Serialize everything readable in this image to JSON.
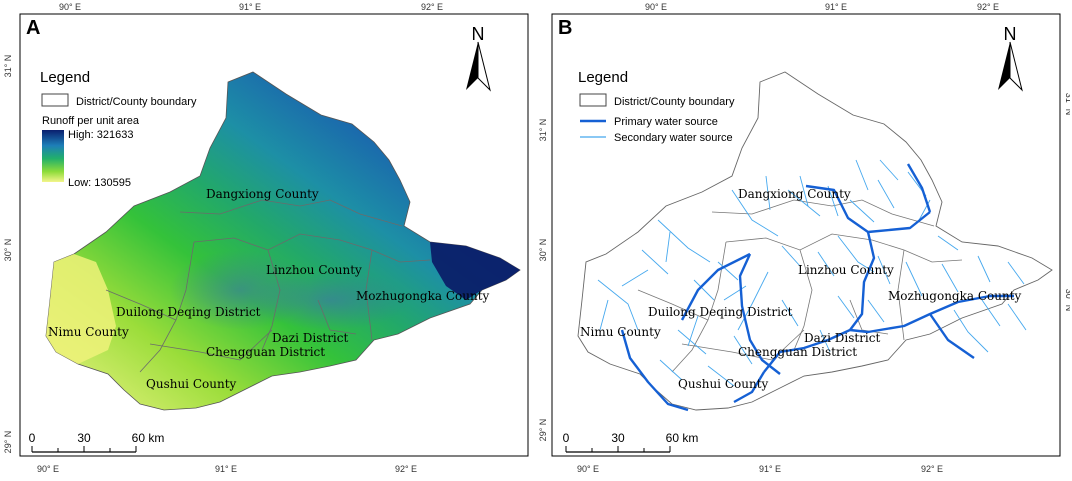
{
  "panels": [
    {
      "letter": "A",
      "north_label": "N",
      "legend_title": "Legend",
      "legend_boundary_label": "District/County boundary",
      "legend_runoff_title": "Runoff per unit area",
      "legend_high_label": "High: 321633",
      "legend_low_label": "Low: 130595",
      "scale_ticks": [
        "0",
        "30",
        "60 km"
      ],
      "lon_ticks": [
        "90° E",
        "91° E",
        "92° E"
      ],
      "lat_ticks": [
        "31° N",
        "30° N",
        "29° N"
      ],
      "region_labels": [
        "Dangxiong County",
        "Linzhou County",
        "Mozhugongka County",
        "Duilong Deqing District",
        "Dazi District",
        "Chengguan District",
        "Nimu County",
        "Qushui County"
      ],
      "colors": {
        "high": "#0a1f6e",
        "low": "#f2f58a"
      }
    },
    {
      "letter": "B",
      "north_label": "N",
      "legend_title": "Legend",
      "legend_boundary_label": "District/County boundary",
      "legend_primary_label": "Primary water source",
      "legend_secondary_label": "Secondary water source",
      "scale_ticks": [
        "0",
        "30",
        "60 km"
      ],
      "lon_ticks": [
        "90° E",
        "91° E",
        "92° E"
      ],
      "lat_ticks": [
        "31° N",
        "30° N",
        "29° N"
      ],
      "region_labels": [
        "Dangxiong County",
        "Linzhou County",
        "Mozhugongka County",
        "Duilong Deqing District",
        "Dazi District",
        "Chengguan District",
        "Nimu County",
        "Qushui County"
      ],
      "colors": {
        "primary": "#1560d4",
        "secondary": "#45a8ee"
      }
    }
  ]
}
